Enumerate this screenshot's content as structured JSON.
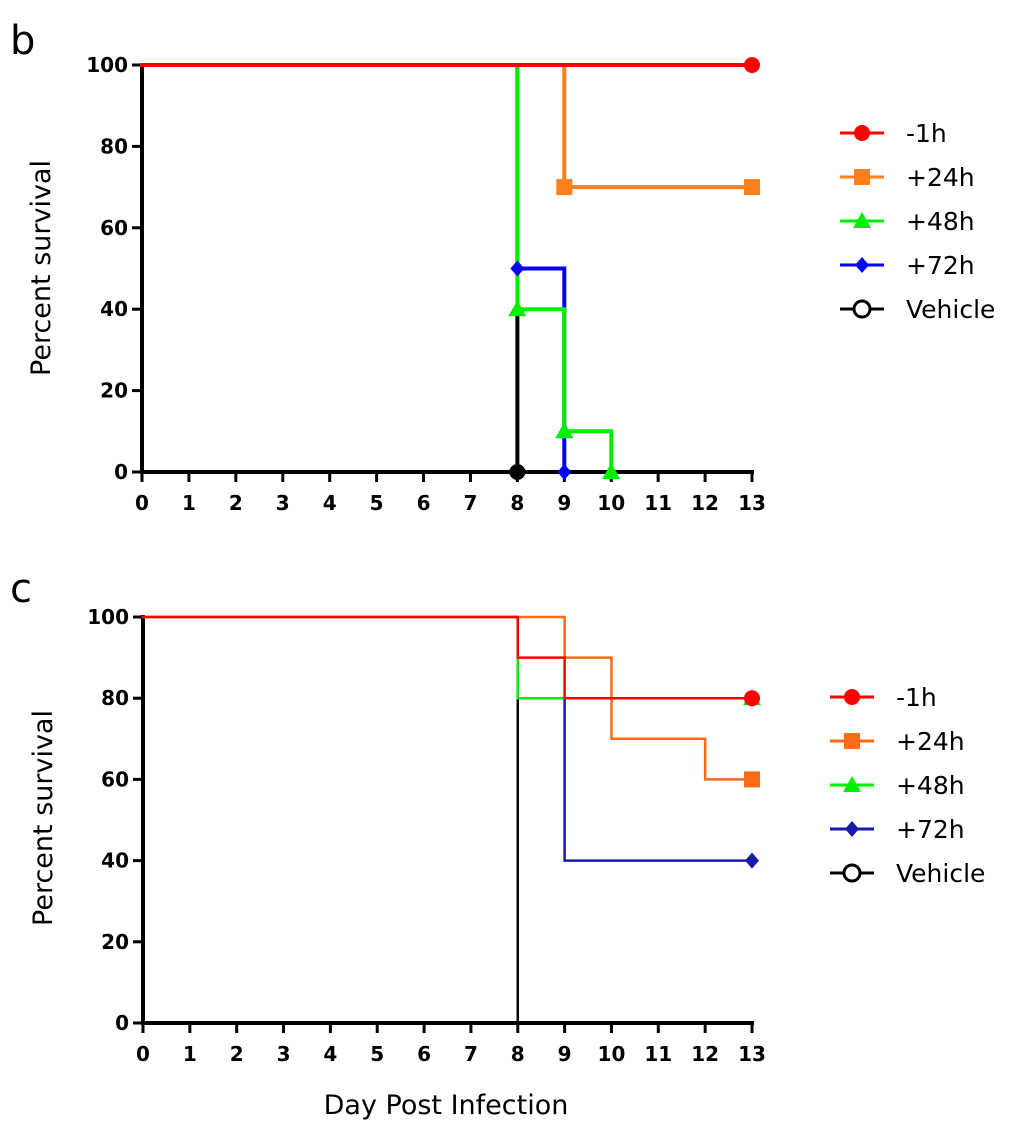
{
  "chart_data": [
    {
      "type": "line",
      "subtype": "kaplan-meier-step",
      "panel_label": "b",
      "xlabel": "",
      "ylabel": "Percent survival",
      "xlim": [
        0,
        13
      ],
      "ylim": [
        0,
        100
      ],
      "xticks": [
        0,
        1,
        2,
        3,
        4,
        5,
        6,
        7,
        8,
        9,
        10,
        11,
        12,
        13
      ],
      "yticks": [
        0,
        20,
        40,
        60,
        80,
        100
      ],
      "legend_position": "right",
      "series": [
        {
          "name": "-1h",
          "color": "#ff0000",
          "marker": "circle",
          "points": [
            [
              0,
              100
            ],
            [
              13,
              100
            ]
          ],
          "markers": [
            [
              13,
              100
            ]
          ]
        },
        {
          "name": "+24h",
          "color": "#ff7f1a",
          "marker": "square",
          "points": [
            [
              0,
              100
            ],
            [
              9,
              100
            ],
            [
              9,
              70
            ],
            [
              13,
              70
            ]
          ],
          "markers": [
            [
              9,
              70
            ],
            [
              13,
              70
            ]
          ]
        },
        {
          "name": "+48h",
          "color": "#00ee00",
          "marker": "triangle",
          "points": [
            [
              0,
              100
            ],
            [
              8,
              100
            ],
            [
              8,
              40
            ],
            [
              9,
              40
            ],
            [
              9,
              10
            ],
            [
              10,
              10
            ],
            [
              10,
              0
            ]
          ],
          "markers": [
            [
              8,
              40
            ],
            [
              9,
              10
            ],
            [
              10,
              0
            ]
          ]
        },
        {
          "name": "+72h",
          "color": "#0000ff",
          "marker": "diamond",
          "points": [
            [
              0,
              100
            ],
            [
              8,
              100
            ],
            [
              8,
              50
            ],
            [
              9,
              50
            ],
            [
              9,
              0
            ]
          ],
          "markers": [
            [
              8,
              50
            ],
            [
              9,
              0
            ]
          ]
        },
        {
          "name": "Vehicle",
          "color": "#000000",
          "marker": "circle-open",
          "points": [
            [
              0,
              100
            ],
            [
              0,
              0
            ],
            [
              8,
              0
            ],
            [
              8,
              40
            ]
          ],
          "markers": [
            [
              8,
              0
            ]
          ]
        }
      ]
    },
    {
      "type": "line",
      "subtype": "kaplan-meier-step",
      "panel_label": "c",
      "xlabel": "Day Post Infection",
      "ylabel": "Percent survival",
      "xlim": [
        0,
        13
      ],
      "ylim": [
        0,
        100
      ],
      "xticks": [
        0,
        1,
        2,
        3,
        4,
        5,
        6,
        7,
        8,
        9,
        10,
        11,
        12,
        13
      ],
      "yticks": [
        0,
        20,
        40,
        60,
        80,
        100
      ],
      "legend_position": "right",
      "series": [
        {
          "name": "-1h",
          "color": "#ff0000",
          "marker": "circle",
          "points": [
            [
              0,
              100
            ],
            [
              8,
              100
            ],
            [
              8,
              90
            ],
            [
              9,
              90
            ],
            [
              9,
              80
            ],
            [
              13,
              80
            ]
          ],
          "markers": [
            [
              13,
              80
            ]
          ]
        },
        {
          "name": "+24h",
          "color": "#ff6a14",
          "marker": "square",
          "points": [
            [
              0,
              100
            ],
            [
              9,
              100
            ],
            [
              9,
              90
            ],
            [
              10,
              90
            ],
            [
              10,
              70
            ],
            [
              12,
              70
            ],
            [
              12,
              60
            ],
            [
              13,
              60
            ]
          ],
          "markers": [
            [
              13,
              60
            ]
          ]
        },
        {
          "name": "+48h",
          "color": "#00ee00",
          "marker": "triangle",
          "points": [
            [
              0,
              100
            ],
            [
              8,
              100
            ],
            [
              8,
              80
            ],
            [
              13,
              80
            ]
          ],
          "markers": [
            [
              13,
              80
            ]
          ]
        },
        {
          "name": "+72h",
          "color": "#1a1aaa",
          "marker": "diamond",
          "points": [
            [
              0,
              100
            ],
            [
              8,
              100
            ],
            [
              8,
              80
            ],
            [
              9,
              80
            ],
            [
              9,
              40
            ],
            [
              13,
              40
            ]
          ],
          "markers": [
            [
              13,
              40
            ]
          ]
        },
        {
          "name": "Vehicle",
          "color": "#000000",
          "marker": "circle-open",
          "points": [
            [
              0,
              100
            ],
            [
              0,
              0
            ],
            [
              8,
              0
            ],
            [
              8,
              80
            ]
          ],
          "markers": []
        }
      ]
    }
  ]
}
